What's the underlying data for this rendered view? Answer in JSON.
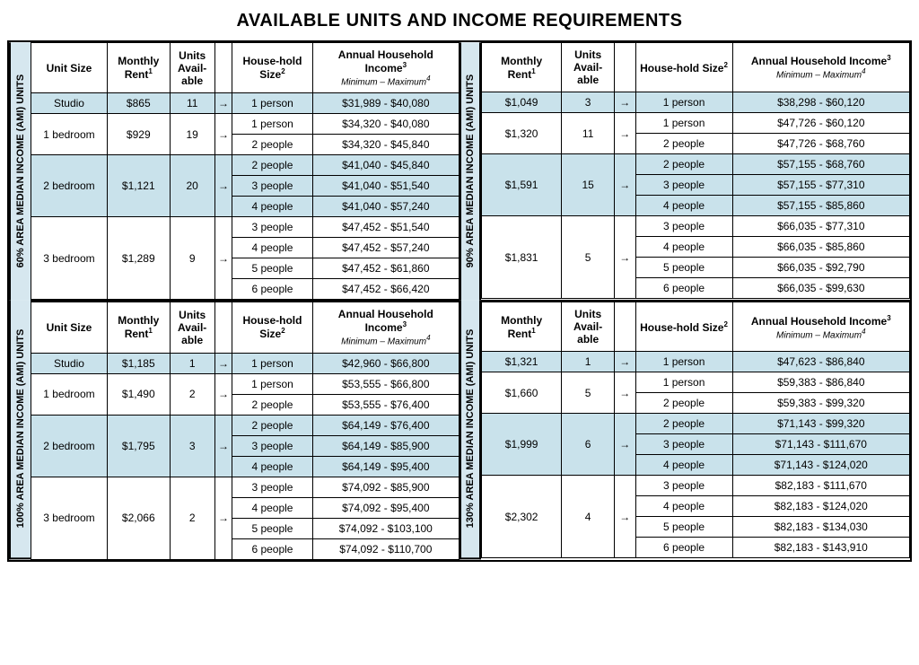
{
  "title": "AVAILABLE UNITS AND INCOME REQUIREMENTS",
  "colors": {
    "highlight": "#c9e2eb",
    "side": "#d6e7ef",
    "border": "#000000"
  },
  "headers": {
    "unit_size": "Unit Size",
    "rent": "Monthly Rent",
    "rent_sup": "1",
    "avail": "Units Avail-able",
    "hh": "House-hold Size",
    "hh_sup": "2",
    "income": "Annual Household Income",
    "income_sup": "3",
    "income_sub": "Minimum – Maximum",
    "income_sub_sup": "4"
  },
  "arrow_glyph": "→",
  "quadrants": [
    {
      "side_label": "60%  AREA MEDIAN INCOME (AMI) UNITS",
      "has_unit_col": true,
      "units": [
        {
          "name": "Studio",
          "rent": "$865",
          "avail": "11",
          "hl": true,
          "rows": [
            {
              "hh": "1 person",
              "inc": "$31,989 - $40,080"
            }
          ]
        },
        {
          "name": "1 bedroom",
          "rent": "$929",
          "avail": "19",
          "hl": false,
          "rows": [
            {
              "hh": "1 person",
              "inc": "$34,320 - $40,080"
            },
            {
              "hh": "2 people",
              "inc": "$34,320 - $45,840"
            }
          ]
        },
        {
          "name": "2 bedroom",
          "rent": "$1,121",
          "avail": "20",
          "hl": true,
          "rows": [
            {
              "hh": "2 people",
              "inc": "$41,040 - $45,840"
            },
            {
              "hh": "3 people",
              "inc": "$41,040 - $51,540"
            },
            {
              "hh": "4 people",
              "inc": "$41,040 - $57,240"
            }
          ]
        },
        {
          "name": "3 bedroom",
          "rent": "$1,289",
          "avail": "9",
          "hl": false,
          "rows": [
            {
              "hh": "3 people",
              "inc": "$47,452 - $51,540"
            },
            {
              "hh": "4 people",
              "inc": "$47,452 - $57,240"
            },
            {
              "hh": "5 people",
              "inc": "$47,452 - $61,860"
            },
            {
              "hh": "6 people",
              "inc": "$47,452 - $66,420"
            }
          ]
        }
      ]
    },
    {
      "side_label": "90%  AREA MEDIAN INCOME (AMI) UNITS",
      "has_unit_col": false,
      "units": [
        {
          "rent": "$1,049",
          "avail": "3",
          "hl": true,
          "rows": [
            {
              "hh": "1 person",
              "inc": "$38,298 - $60,120"
            }
          ]
        },
        {
          "rent": "$1,320",
          "avail": "11",
          "hl": false,
          "rows": [
            {
              "hh": "1 person",
              "inc": "$47,726 - $60,120"
            },
            {
              "hh": "2 people",
              "inc": "$47,726 - $68,760"
            }
          ]
        },
        {
          "rent": "$1,591",
          "avail": "15",
          "hl": true,
          "rows": [
            {
              "hh": "2 people",
              "inc": "$57,155 - $68,760"
            },
            {
              "hh": "3 people",
              "inc": "$57,155 - $77,310"
            },
            {
              "hh": "4 people",
              "inc": "$57,155 - $85,860"
            }
          ]
        },
        {
          "rent": "$1,831",
          "avail": "5",
          "hl": false,
          "rows": [
            {
              "hh": "3 people",
              "inc": "$66,035 - $77,310"
            },
            {
              "hh": "4 people",
              "inc": "$66,035 - $85,860"
            },
            {
              "hh": "5 people",
              "inc": "$66,035 - $92,790"
            },
            {
              "hh": "6 people",
              "inc": "$66,035 - $99,630"
            }
          ]
        }
      ]
    },
    {
      "side_label": "100%  AREA MEDIAN INCOME (AMI) UNITS",
      "has_unit_col": true,
      "units": [
        {
          "name": "Studio",
          "rent": "$1,185",
          "avail": "1",
          "hl": true,
          "rows": [
            {
              "hh": "1 person",
              "inc": "$42,960 - $66,800"
            }
          ]
        },
        {
          "name": "1 bedroom",
          "rent": "$1,490",
          "avail": "2",
          "hl": false,
          "rows": [
            {
              "hh": "1 person",
              "inc": "$53,555 - $66,800"
            },
            {
              "hh": "2 people",
              "inc": "$53,555 - $76,400"
            }
          ]
        },
        {
          "name": "2 bedroom",
          "rent": "$1,795",
          "avail": "3",
          "hl": true,
          "rows": [
            {
              "hh": "2 people",
              "inc": "$64,149 - $76,400"
            },
            {
              "hh": "3 people",
              "inc": "$64,149 - $85,900"
            },
            {
              "hh": "4 people",
              "inc": "$64,149 - $95,400"
            }
          ]
        },
        {
          "name": "3 bedroom",
          "rent": "$2,066",
          "avail": "2",
          "hl": false,
          "rows": [
            {
              "hh": "3 people",
              "inc": "$74,092 - $85,900"
            },
            {
              "hh": "4 people",
              "inc": "$74,092 - $95,400"
            },
            {
              "hh": "5 people",
              "inc": "$74,092 - $103,100"
            },
            {
              "hh": "6 people",
              "inc": "$74,092 - $110,700"
            }
          ]
        }
      ]
    },
    {
      "side_label": "130%  AREA MEDIAN INCOME (AMI) UNITS",
      "has_unit_col": false,
      "units": [
        {
          "rent": "$1,321",
          "avail": "1",
          "hl": true,
          "rows": [
            {
              "hh": "1 person",
              "inc": "$47,623 - $86,840"
            }
          ]
        },
        {
          "rent": "$1,660",
          "avail": "5",
          "hl": false,
          "rows": [
            {
              "hh": "1 person",
              "inc": "$59,383 - $86,840"
            },
            {
              "hh": "2 people",
              "inc": "$59,383 - $99,320"
            }
          ]
        },
        {
          "rent": "$1,999",
          "avail": "6",
          "hl": true,
          "rows": [
            {
              "hh": "2 people",
              "inc": "$71,143 - $99,320"
            },
            {
              "hh": "3 people",
              "inc": "$71,143 - $111,670"
            },
            {
              "hh": "4 people",
              "inc": "$71,143 - $124,020"
            }
          ]
        },
        {
          "rent": "$2,302",
          "avail": "4",
          "hl": false,
          "rows": [
            {
              "hh": "3 people",
              "inc": "$82,183 - $111,670"
            },
            {
              "hh": "4 people",
              "inc": "$82,183 - $124,020"
            },
            {
              "hh": "5 people",
              "inc": "$82,183 - $134,030"
            },
            {
              "hh": "6 people",
              "inc": "$82,183 - $143,910"
            }
          ]
        }
      ]
    }
  ]
}
